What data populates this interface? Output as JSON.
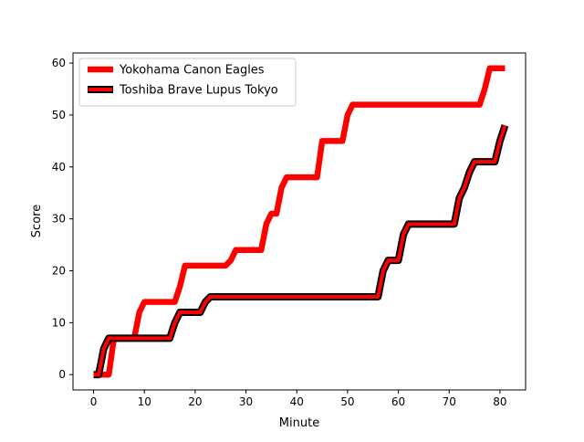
{
  "chart_data": {
    "type": "line",
    "title": "",
    "xlabel": "Minute",
    "ylabel": "Score",
    "xlim": [
      -4.05,
      85.05
    ],
    "ylim": [
      -2.95,
      61.95
    ],
    "xticks": [
      0,
      10,
      20,
      30,
      40,
      50,
      60,
      70,
      80
    ],
    "yticks": [
      0,
      10,
      20,
      30,
      40,
      50,
      60
    ],
    "grid": false,
    "legend_position": "upper-left",
    "series": [
      {
        "name": "Yokohama Canon Eagles",
        "color": "#ff0000",
        "style": "thick-solid",
        "x": [
          0,
          2,
          3,
          4,
          8,
          9,
          10,
          16,
          17,
          18,
          26,
          27,
          28,
          33,
          34,
          35,
          36,
          37,
          38,
          44,
          45,
          46,
          49,
          50,
          51,
          76,
          77,
          78,
          81
        ],
        "y": [
          0,
          0,
          0,
          7,
          7,
          12,
          14,
          14,
          17,
          21,
          21,
          22,
          24,
          24,
          29,
          31,
          31,
          36,
          38,
          38,
          45,
          45,
          45,
          50,
          52,
          52,
          55,
          59,
          59
        ]
      },
      {
        "name": "Toshiba Brave Lupus Tokyo",
        "color": "#ff0000",
        "edge_color": "#000000",
        "style": "red-with-black-outline",
        "x": [
          0,
          1,
          2,
          3,
          15,
          16,
          17,
          21,
          22,
          23,
          56,
          57,
          58,
          60,
          61,
          62,
          71,
          72,
          73,
          74,
          75,
          79,
          80,
          81
        ],
        "y": [
          0,
          0,
          5,
          7,
          7,
          10,
          12,
          12,
          14,
          15,
          15,
          20,
          22,
          22,
          27,
          29,
          29,
          34,
          36,
          39,
          41,
          41,
          45,
          48
        ]
      }
    ]
  }
}
